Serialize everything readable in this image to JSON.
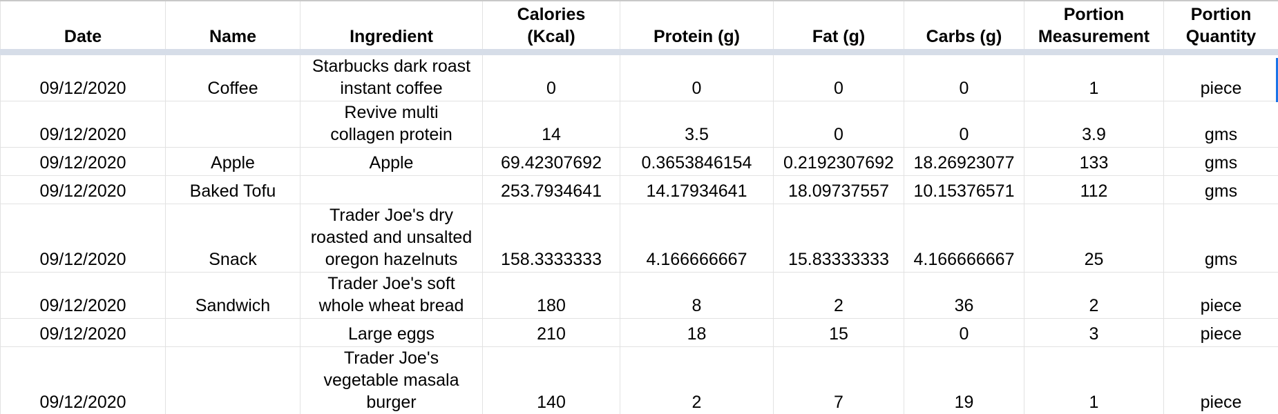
{
  "headers": {
    "date": "Date",
    "name": "Name",
    "ingredient": "Ingredient",
    "calories_line1": "Calories",
    "calories_line2": "(Kcal)",
    "protein": "Protein (g)",
    "fat": "Fat (g)",
    "carbs": "Carbs (g)",
    "portion_measurement_line1": "Portion",
    "portion_measurement_line2": "Measurement",
    "portion_quantity_line1": "Portion",
    "portion_quantity_line2": "Quantity"
  },
  "rows": [
    {
      "date": "09/12/2020",
      "name": "Coffee",
      "ingredient": [
        "Starbucks dark roast",
        "instant coffee"
      ],
      "calories": "0",
      "protein": "0",
      "fat": "0",
      "carbs": "0",
      "measurement": "1",
      "quantity": "piece"
    },
    {
      "date": "09/12/2020",
      "name": "",
      "ingredient": [
        "Revive multi",
        "collagen protein"
      ],
      "calories": "14",
      "protein": "3.5",
      "fat": "0",
      "carbs": "0",
      "measurement": "3.9",
      "quantity": "gms"
    },
    {
      "date": "09/12/2020",
      "name": "Apple",
      "ingredient": [
        "Apple"
      ],
      "calories": "69.42307692",
      "protein": "0.3653846154",
      "fat": "0.2192307692",
      "carbs": "18.26923077",
      "measurement": "133",
      "quantity": "gms"
    },
    {
      "date": "09/12/2020",
      "name": "Baked Tofu",
      "ingredient": [
        ""
      ],
      "calories": "253.7934641",
      "protein": "14.17934641",
      "fat": "18.09737557",
      "carbs": "10.15376571",
      "measurement": "112",
      "quantity": "gms"
    },
    {
      "date": "09/12/2020",
      "name": "Snack",
      "ingredient": [
        "Trader Joe's dry",
        "roasted and unsalted",
        "oregon hazelnuts"
      ],
      "calories": "158.3333333",
      "protein": "4.166666667",
      "fat": "15.83333333",
      "carbs": "4.166666667",
      "measurement": "25",
      "quantity": "gms"
    },
    {
      "date": "09/12/2020",
      "name": "Sandwich",
      "ingredient": [
        "Trader Joe's soft",
        "whole wheat bread"
      ],
      "calories": "180",
      "protein": "8",
      "fat": "2",
      "carbs": "36",
      "measurement": "2",
      "quantity": "piece"
    },
    {
      "date": "09/12/2020",
      "name": "",
      "ingredient": [
        "Large eggs"
      ],
      "calories": "210",
      "protein": "18",
      "fat": "15",
      "carbs": "0",
      "measurement": "3",
      "quantity": "piece"
    },
    {
      "date": "09/12/2020",
      "name": "",
      "ingredient": [
        "Trader Joe's",
        "vegetable masala",
        "burger"
      ],
      "calories": "140",
      "protein": "2",
      "fat": "7",
      "carbs": "19",
      "measurement": "1",
      "quantity": "piece"
    }
  ],
  "colors": {
    "header_separator": "#d6dde8",
    "gridline": "#e2e2e2",
    "selection": "#1a73e8"
  }
}
